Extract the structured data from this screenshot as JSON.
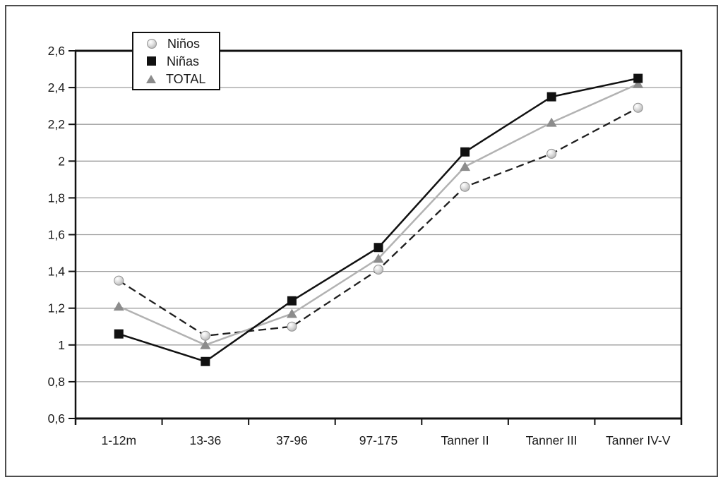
{
  "figure": {
    "background": "#ffffff",
    "border_color": "#4d4d4d"
  },
  "chart_data": {
    "type": "line",
    "title": "",
    "xlabel": "",
    "ylabel": "",
    "categories": [
      "1-12m",
      "13-36",
      "37-96",
      "97-175",
      "Tanner II",
      "Tanner III",
      "Tanner IV-V"
    ],
    "series": [
      {
        "key": "ninos",
        "name": "Niños",
        "values": [
          1.35,
          1.05,
          1.1,
          1.41,
          1.86,
          2.04,
          2.29
        ],
        "line_style": "dashed",
        "line_color": "#1f1f1f",
        "marker": "sphere",
        "marker_color": "#c9c9c9"
      },
      {
        "key": "ninas",
        "name": "Niñas",
        "values": [
          1.06,
          0.91,
          1.24,
          1.53,
          2.05,
          2.35,
          2.45
        ],
        "line_style": "solid",
        "line_color": "#111111",
        "marker": "square",
        "marker_color": "#111111"
      },
      {
        "key": "total",
        "name": "TOTAL",
        "values": [
          1.21,
          1.0,
          1.17,
          1.47,
          1.97,
          2.21,
          2.42
        ],
        "line_style": "solid",
        "line_color": "#b2b2b2",
        "marker": "triangle",
        "marker_color": "#8c8c8c"
      }
    ],
    "draw_order": [
      "ninos",
      "total",
      "ninas"
    ],
    "ylim": [
      0.6,
      2.6
    ],
    "ytick_step": 0.2,
    "ytick_labels": [
      "0,6",
      "0,8",
      "1",
      "1,2",
      "1,4",
      "1,6",
      "1,8",
      "2",
      "2,2",
      "2,4",
      "2,6"
    ],
    "grid": "horizontal",
    "gridline_color": "#9e9e9e",
    "axis_color": "#111111",
    "legend_position": "top-inside-left"
  }
}
